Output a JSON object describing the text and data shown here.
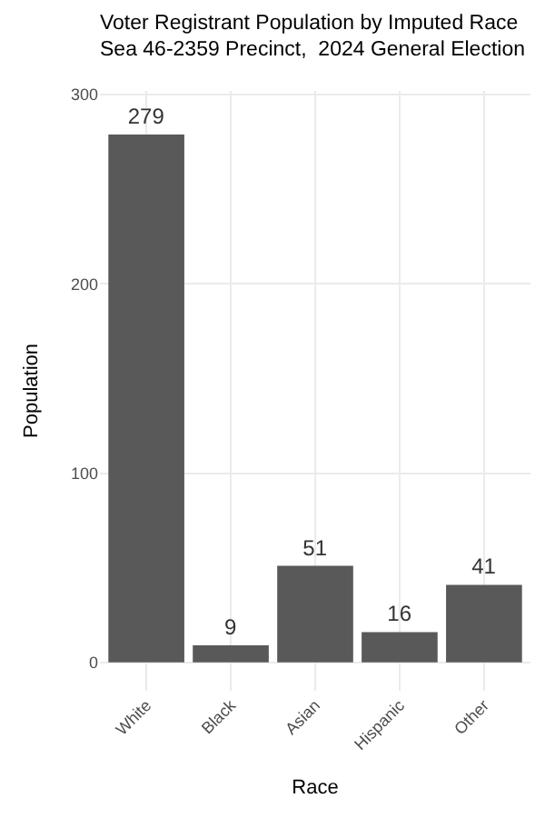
{
  "chart_data": {
    "type": "bar",
    "title": "Voter Registrant Population by Imputed Race\nSea 46-2359 Precinct,  2024 General Election",
    "xlabel": "Race",
    "ylabel": "Population",
    "categories": [
      "White",
      "Black",
      "Asian",
      "Hispanic",
      "Other"
    ],
    "values": [
      279,
      9,
      51,
      16,
      41
    ],
    "color": "#595959",
    "data_labels": true,
    "ylim": [
      -15,
      302
    ],
    "yticks": [
      0,
      100,
      200,
      300
    ],
    "grid": true
  }
}
